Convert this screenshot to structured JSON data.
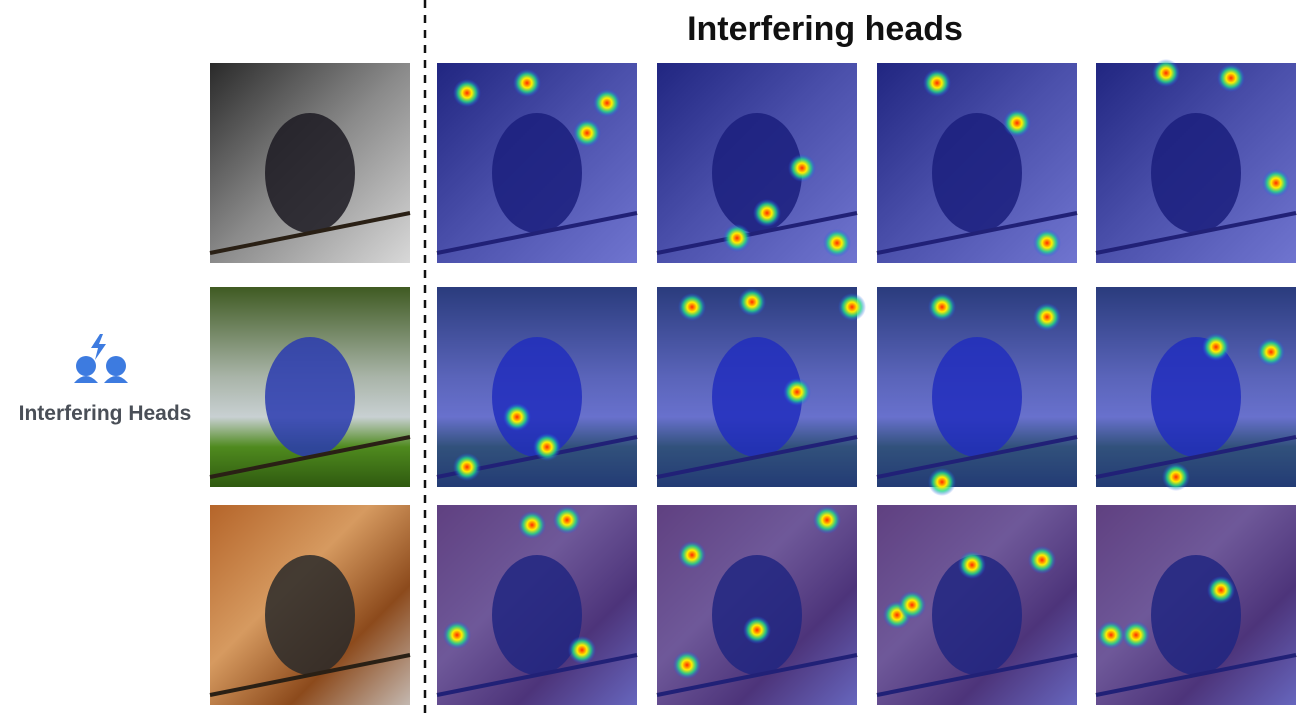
{
  "header": {
    "title": "Interfering heads"
  },
  "sidebar": {
    "label": "Interfering Heads"
  }
}
